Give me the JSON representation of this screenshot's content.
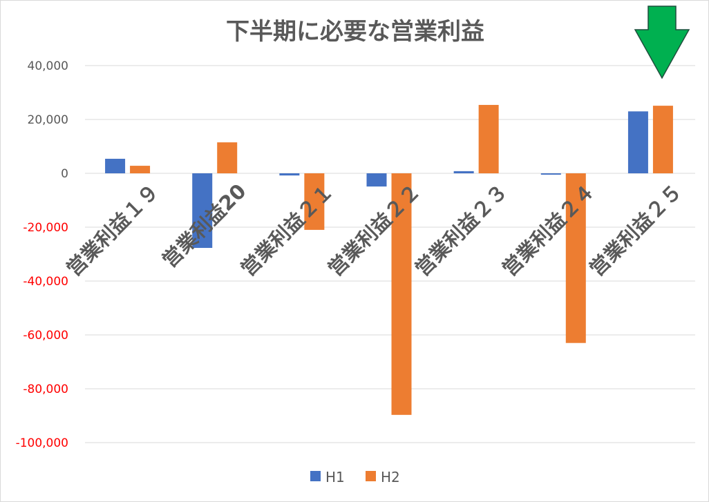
{
  "chart_data": {
    "type": "bar",
    "title": "下半期に必要な営業利益",
    "categories": [
      "営業利益１９",
      "営業利益20",
      "営業利益２１",
      "営業利益２２",
      "営業利益２３",
      "営業利益２４",
      "営業利益２５"
    ],
    "series": [
      {
        "name": "H1",
        "color": "#4472c4",
        "values": [
          5400,
          -27700,
          -800,
          -4900,
          800,
          -500,
          23000
        ]
      },
      {
        "name": "H2",
        "color": "#ed7d31",
        "values": [
          2800,
          11500,
          -21000,
          -89700,
          25400,
          -63000,
          25100
        ]
      }
    ],
    "yticks": [
      40000,
      20000,
      0,
      -20000,
      -40000,
      -60000,
      -80000,
      -100000
    ],
    "ytick_labels": [
      "40,000",
      "20,000",
      "0",
      "-20,000",
      "-40,000",
      "-60,000",
      "-80,000",
      "-100,000"
    ],
    "ylim": [
      -100000,
      40000
    ],
    "negative_tick_color": "#ff0000",
    "grid": true,
    "legend": "bottom",
    "annotation": "green-down-arrow"
  }
}
